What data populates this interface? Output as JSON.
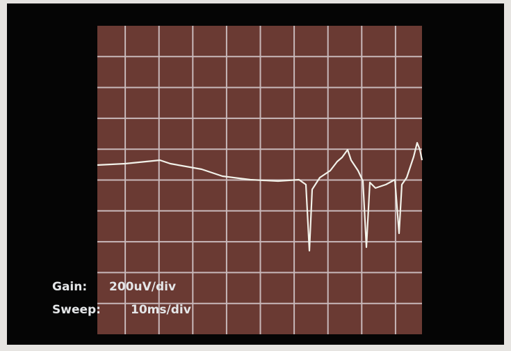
{
  "readout": {
    "gain": {
      "label": "Gain:",
      "value": "200uV/div"
    },
    "sweep": {
      "label": "Sweep:",
      "value": "10ms/div"
    }
  }
}
